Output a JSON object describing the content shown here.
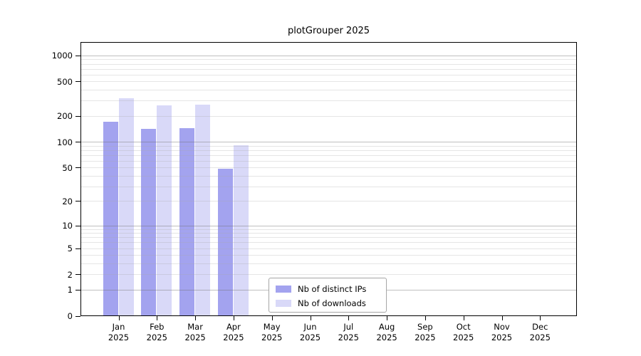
{
  "chart_data": {
    "type": "bar",
    "title": "plotGrouper 2025",
    "year": "2025",
    "categories": [
      "Jan",
      "Feb",
      "Mar",
      "Apr",
      "May",
      "Jun",
      "Jul",
      "Aug",
      "Sep",
      "Oct",
      "Nov",
      "Dec"
    ],
    "series": [
      {
        "name": "Nb of distinct IPs",
        "color": "#a3a3ef",
        "values": [
          170,
          140,
          144,
          48,
          0,
          0,
          0,
          0,
          0,
          0,
          0,
          0
        ]
      },
      {
        "name": "Nb of downloads",
        "color": "#d9d9f8",
        "values": [
          318,
          260,
          268,
          90,
          0,
          0,
          0,
          0,
          0,
          0,
          0,
          0
        ]
      }
    ],
    "y_ticks": [
      0,
      1,
      2,
      5,
      10,
      20,
      50,
      100,
      200,
      500,
      1000
    ],
    "y_scale": "log1p",
    "ylim": [
      0,
      1100
    ],
    "grid": true,
    "legend_position": "bottom-center-inside",
    "xlabel": "",
    "ylabel": ""
  }
}
